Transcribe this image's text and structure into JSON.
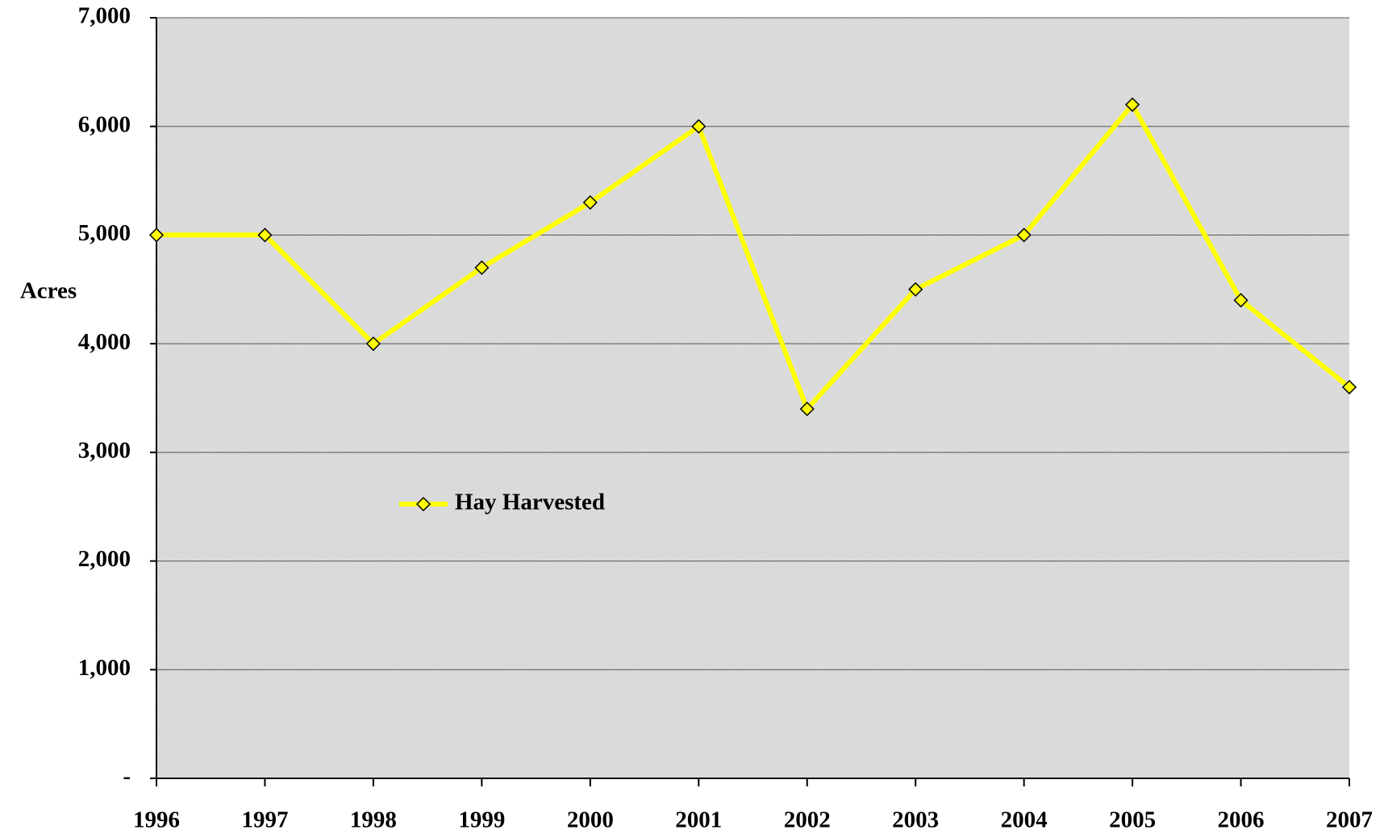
{
  "chart_data": {
    "type": "line",
    "y_label": "Acres",
    "categories": [
      "1996",
      "1997",
      "1998",
      "1999",
      "2000",
      "2001",
      "2002",
      "2003",
      "2004",
      "2005",
      "2006",
      "2007"
    ],
    "series": [
      {
        "name": "Hay Harvested",
        "color": "#ffff00",
        "values": [
          5000,
          5000,
          4000,
          4700,
          5300,
          6000,
          3400,
          4500,
          5000,
          6200,
          4400,
          3600
        ]
      }
    ],
    "ylim": [
      0,
      7000
    ],
    "yticks": [
      {
        "value": 0,
        "label": "-"
      },
      {
        "value": 1000,
        "label": "1,000"
      },
      {
        "value": 2000,
        "label": "2,000"
      },
      {
        "value": 3000,
        "label": "3,000"
      },
      {
        "value": 4000,
        "label": "4,000"
      },
      {
        "value": 5000,
        "label": "5,000"
      },
      {
        "value": 6000,
        "label": "6,000"
      },
      {
        "value": 7000,
        "label": "7,000"
      }
    ],
    "grid": true
  }
}
